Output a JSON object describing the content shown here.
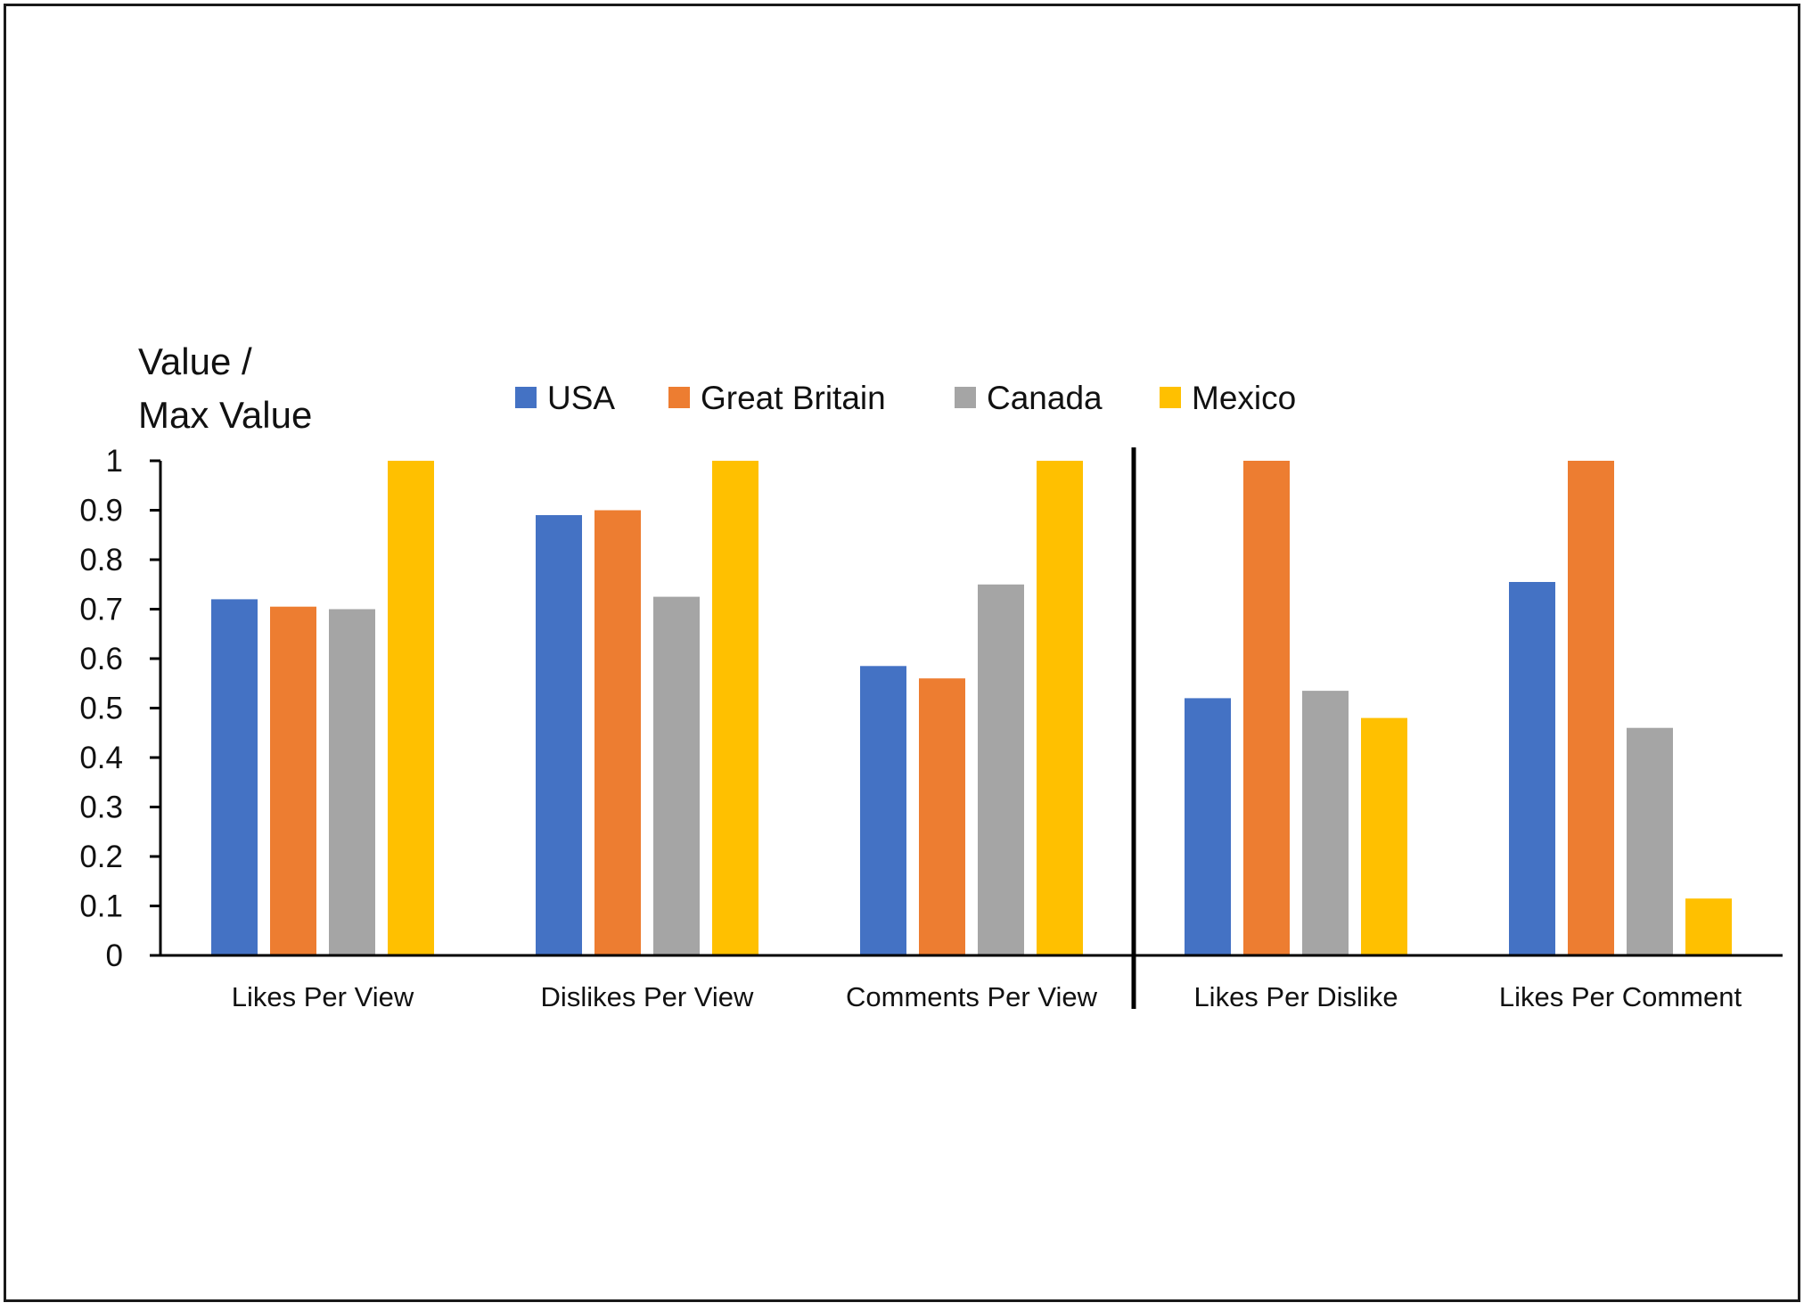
{
  "chart_data": {
    "type": "bar",
    "title": "",
    "xlabel": "",
    "ylabel": [
      "Value /",
      "Max Value"
    ],
    "ylim": [
      0,
      1
    ],
    "yticks": [
      "0",
      "0.1",
      "0.2",
      "0.3",
      "0.4",
      "0.5",
      "0.6",
      "0.7",
      "0.8",
      "0.9",
      "1"
    ],
    "grid": false,
    "legend_position": "top",
    "categories": [
      "Likes Per View",
      "Dislikes Per View",
      "Comments Per View",
      "Likes Per Dislike",
      "Likes Per Comment"
    ],
    "divider_after_category": "Comments Per View",
    "series": [
      {
        "name": "USA",
        "color": "#4472C4",
        "values": [
          0.72,
          0.89,
          0.585,
          0.52,
          0.755
        ]
      },
      {
        "name": "Great Britain",
        "color": "#ED7D31",
        "values": [
          0.705,
          0.9,
          0.56,
          1.0,
          1.0
        ]
      },
      {
        "name": "Canada",
        "color": "#A5A5A5",
        "values": [
          0.7,
          0.725,
          0.75,
          0.535,
          0.46
        ]
      },
      {
        "name": "Mexico",
        "color": "#FFC000",
        "values": [
          1.0,
          1.0,
          1.0,
          0.48,
          0.115
        ]
      }
    ]
  }
}
